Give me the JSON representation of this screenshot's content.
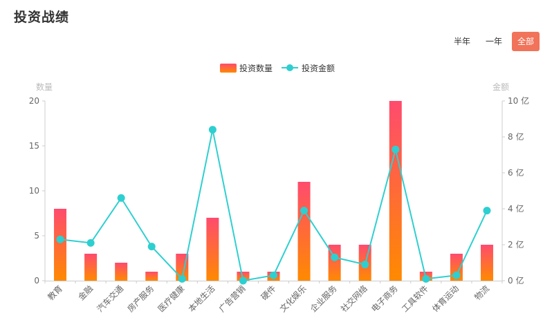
{
  "page": {
    "title": "投资战绩",
    "tabs": [
      "半年",
      "一年",
      "全部"
    ],
    "active_tab": "全部"
  },
  "colors": {
    "bar_top": "#ff4b6e",
    "bar_bottom": "#ff8a00",
    "line": "#2ecfd0",
    "active_tab": "#f0735a"
  },
  "chart_data": {
    "type": "bar",
    "categories": [
      "教育",
      "金融",
      "汽车交通",
      "房产服务",
      "医疗健康",
      "本地生活",
      "广告营销",
      "硬件",
      "文化娱乐",
      "企业服务",
      "社交网络",
      "电子商务",
      "工具软件",
      "体育运动",
      "物流"
    ],
    "series": [
      {
        "name": "投资数量",
        "type": "bar",
        "axis": "left",
        "values": [
          8,
          3,
          2,
          1,
          3,
          7,
          1,
          1,
          11,
          4,
          4,
          20,
          1,
          3,
          4
        ]
      },
      {
        "name": "投资金额",
        "type": "line",
        "axis": "right",
        "values": [
          2.3,
          2.1,
          4.6,
          1.9,
          0.1,
          8.4,
          0.0,
          0.3,
          3.9,
          1.3,
          0.9,
          7.3,
          0.1,
          0.3,
          3.9
        ]
      }
    ],
    "yleft": {
      "label": "数量",
      "range": [
        0,
        20
      ],
      "ticks": [
        "0",
        "5",
        "10",
        "15",
        "20"
      ]
    },
    "yright": {
      "label": "金额",
      "range": [
        0,
        10
      ],
      "ticks": [
        "0 亿",
        "2 亿",
        "4 亿",
        "6 亿",
        "8 亿",
        "10 亿"
      ]
    },
    "legend": {
      "position": "top-center"
    },
    "grid": false
  }
}
